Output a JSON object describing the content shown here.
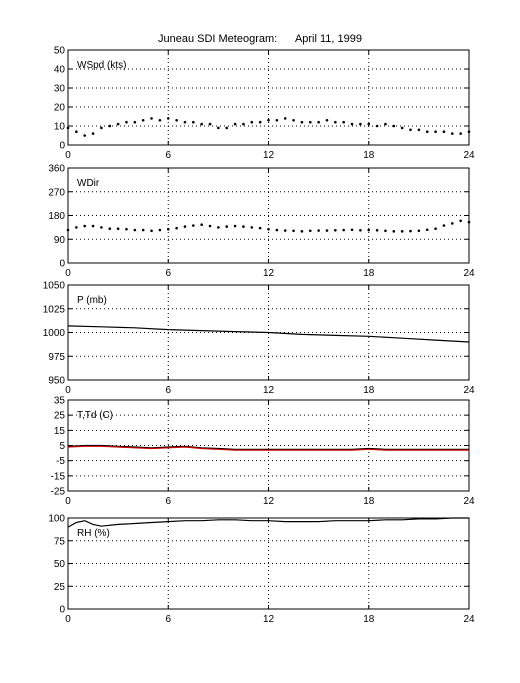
{
  "figure": {
    "title": "Juneau SDI Meteogram:      April 11, 1999"
  },
  "chart_data": [
    {
      "type": "scatter",
      "panel_label": "WSpd (kts)",
      "x_ticks": [
        0,
        6,
        12,
        18,
        24
      ],
      "y_ticks": [
        0,
        10,
        20,
        30,
        40,
        50
      ],
      "xlim": [
        0,
        24
      ],
      "ylim": [
        0,
        50
      ],
      "grid": true,
      "series": [
        {
          "color": "#000000",
          "x": [
            0,
            0.5,
            1,
            1.5,
            2,
            2.5,
            3,
            3.5,
            4,
            4.5,
            5,
            5.5,
            6,
            6.5,
            7,
            7.5,
            8,
            8.5,
            9,
            9.5,
            10,
            10.5,
            11,
            11.5,
            12,
            12.5,
            13,
            13.5,
            14,
            14.5,
            15,
            15.5,
            16,
            16.5,
            17,
            17.5,
            18,
            18.5,
            19,
            19.5,
            20,
            20.5,
            21,
            21.5,
            22,
            22.5,
            23,
            23.5,
            24
          ],
          "y": [
            9,
            7,
            5,
            6,
            9,
            10,
            11,
            12,
            12,
            13,
            14,
            13,
            14,
            13,
            12,
            12,
            11,
            11,
            9,
            9,
            11,
            11,
            12,
            12,
            13,
            13,
            14,
            13,
            12,
            12,
            12,
            13,
            12,
            12,
            11,
            11,
            11,
            10,
            11,
            10,
            9,
            8,
            8,
            7,
            7,
            7,
            6,
            6,
            7
          ]
        }
      ]
    },
    {
      "type": "scatter",
      "panel_label": "WDir",
      "x_ticks": [
        0,
        6,
        12,
        18,
        24
      ],
      "y_ticks": [
        0,
        90,
        180,
        270,
        360
      ],
      "xlim": [
        0,
        24
      ],
      "ylim": [
        0,
        360
      ],
      "grid": true,
      "series": [
        {
          "color": "#000000",
          "x": [
            0,
            0.5,
            1,
            1.5,
            2,
            2.5,
            3,
            3.5,
            4,
            4.5,
            5,
            5.5,
            6,
            6.5,
            7,
            7.5,
            8,
            8.5,
            9,
            9.5,
            10,
            10.5,
            11,
            11.5,
            12,
            12.5,
            13,
            13.5,
            14,
            14.5,
            15,
            15.5,
            16,
            16.5,
            17,
            17.5,
            18,
            18.5,
            19,
            19.5,
            20,
            20.5,
            21,
            21.5,
            22,
            22.5,
            23,
            23.5,
            24
          ],
          "y": [
            125,
            135,
            140,
            140,
            135,
            130,
            130,
            128,
            125,
            125,
            122,
            125,
            128,
            132,
            138,
            142,
            145,
            140,
            135,
            138,
            140,
            138,
            135,
            132,
            128,
            125,
            123,
            122,
            120,
            122,
            123,
            123,
            124,
            125,
            126,
            124,
            125,
            124,
            122,
            120,
            120,
            121,
            122,
            126,
            130,
            142,
            150,
            160,
            155
          ]
        }
      ]
    },
    {
      "type": "line",
      "panel_label": "P (mb)",
      "x_ticks": [
        0,
        6,
        12,
        18,
        24
      ],
      "y_ticks": [
        950,
        975,
        1000,
        1025,
        1050
      ],
      "xlim": [
        0,
        24
      ],
      "ylim": [
        950,
        1050
      ],
      "grid": true,
      "series": [
        {
          "color": "#000000",
          "x": [
            0,
            2,
            4,
            6,
            8,
            10,
            12,
            14,
            16,
            18,
            20,
            22,
            24
          ],
          "y": [
            1007,
            1006,
            1005,
            1003,
            1002,
            1001,
            1000,
            998,
            997,
            996,
            994,
            992,
            990
          ]
        }
      ]
    },
    {
      "type": "line",
      "panel_label": "T,Td (C)",
      "x_ticks": [
        0,
        6,
        12,
        18,
        24
      ],
      "y_ticks": [
        -25,
        -15,
        -5,
        5,
        15,
        25,
        35
      ],
      "xlim": [
        0,
        24
      ],
      "ylim": [
        -25,
        35
      ],
      "grid": true,
      "series": [
        {
          "color": "#000000",
          "x": [
            0,
            1,
            2,
            3,
            4,
            5,
            6,
            7,
            8,
            9,
            10,
            11,
            12,
            13,
            14,
            15,
            16,
            17,
            18,
            19,
            20,
            21,
            22,
            23,
            24
          ],
          "y": [
            4.5,
            5,
            5,
            4.5,
            4,
            3.5,
            4,
            4.5,
            3.5,
            3,
            2.5,
            2.5,
            2.5,
            2.5,
            2.5,
            2.5,
            2.5,
            2.5,
            3,
            2.5,
            2.5,
            2.5,
            2.5,
            2.5,
            2.5
          ]
        },
        {
          "color": "#cc0000",
          "x": [
            0,
            1,
            2,
            3,
            4,
            5,
            6,
            7,
            8,
            9,
            10,
            11,
            12,
            13,
            14,
            15,
            16,
            17,
            18,
            19,
            20,
            21,
            22,
            23,
            24
          ],
          "y": [
            4,
            4.5,
            4.5,
            4,
            3.5,
            3,
            3.5,
            4,
            3,
            2.5,
            2,
            2,
            2,
            2,
            2,
            2,
            2,
            2,
            2.5,
            2,
            2,
            2,
            2,
            2,
            2
          ]
        }
      ]
    },
    {
      "type": "line",
      "panel_label": "RH (%)",
      "x_ticks": [
        0,
        6,
        12,
        18,
        24
      ],
      "y_ticks": [
        0,
        25,
        50,
        75,
        100
      ],
      "xlim": [
        0,
        24
      ],
      "ylim": [
        0,
        100
      ],
      "grid": true,
      "series": [
        {
          "color": "#000000",
          "x": [
            0,
            0.5,
            1,
            1.5,
            2,
            3,
            4,
            5,
            6,
            7,
            8,
            9,
            10,
            11,
            12,
            13,
            14,
            15,
            16,
            17,
            18,
            19,
            20,
            21,
            22,
            23,
            24
          ],
          "y": [
            90,
            95,
            97,
            93,
            91,
            93,
            94,
            95,
            96,
            97,
            97,
            98,
            98,
            97,
            97,
            96,
            96,
            96,
            97,
            97,
            97,
            98,
            98,
            99,
            99,
            100,
            100
          ]
        }
      ]
    }
  ]
}
